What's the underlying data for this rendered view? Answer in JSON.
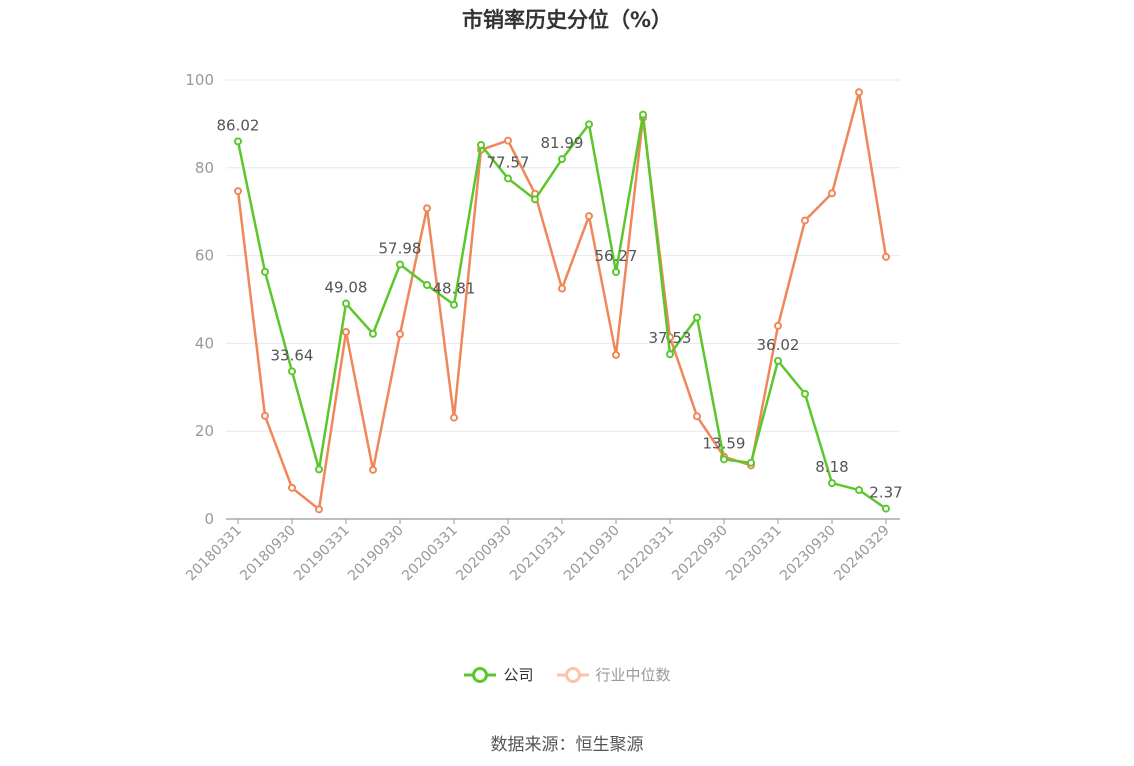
{
  "chart_data": {
    "type": "line",
    "title": "市销率历史分位（%）",
    "xlabel": "",
    "ylabel": "",
    "ylim": [
      0,
      100
    ],
    "yticks": [
      0,
      20,
      40,
      60,
      80,
      100
    ],
    "grid": true,
    "legend_position": "bottom",
    "x": [
      "20180331",
      "20180630",
      "20180930",
      "20181231",
      "20190331",
      "20190630",
      "20190930",
      "20191231",
      "20200331",
      "20200630",
      "20200930",
      "20201231",
      "20210331",
      "20210630",
      "20210930",
      "20211231",
      "20220331",
      "20220630",
      "20220930",
      "20221231",
      "20230331",
      "20230630",
      "20230930",
      "20231231",
      "20240329"
    ],
    "x_tick_labels": [
      "20180331",
      "20180930",
      "20190331",
      "20190930",
      "20200331",
      "20200930",
      "20210331",
      "20210930",
      "20220331",
      "20220930",
      "20230331",
      "20230930",
      "20240329"
    ],
    "series": [
      {
        "name": "公司",
        "color": "#5cc72d",
        "values": [
          86.02,
          56.3,
          33.64,
          11.3,
          49.08,
          42.2,
          57.98,
          53.3,
          48.81,
          85.2,
          77.57,
          72.8,
          81.99,
          89.9,
          56.27,
          92.1,
          37.53,
          45.9,
          13.59,
          12.8,
          36.02,
          28.5,
          8.18,
          6.6,
          2.37
        ],
        "labels": [
          "86.02",
          "",
          "33.64",
          "",
          "49.08",
          "",
          "57.98",
          "",
          "48.81",
          "",
          "77.57",
          "",
          "81.99",
          "",
          "56.27",
          "",
          "37.53",
          "",
          "13.59",
          "",
          "36.02",
          "",
          "8.18",
          "",
          "2.37"
        ]
      },
      {
        "name": "行业中位数",
        "color": "#f0875a",
        "values": [
          74.7,
          23.5,
          7.1,
          2.2,
          42.6,
          11.2,
          42.1,
          70.8,
          23.1,
          84.1,
          86.2,
          74.1,
          52.5,
          69.0,
          37.4,
          91.4,
          41.4,
          23.4,
          14.2,
          12.2,
          44.0,
          68.0,
          74.2,
          97.2,
          59.7
        ]
      }
    ]
  },
  "legend": {
    "company": "公司",
    "industry": "行业中位数",
    "company_color": "#5cc72d",
    "industry_color": "#f0875a"
  },
  "source_note": "数据来源：恒生聚源"
}
